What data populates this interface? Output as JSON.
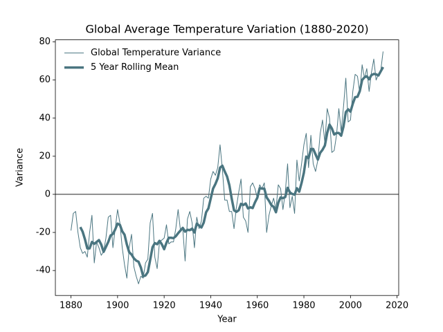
{
  "chart_data": {
    "type": "line",
    "title": "Global Average Temperature Variation (1880-2020)",
    "xlabel": "Year",
    "ylabel": "Variance",
    "x": [
      1880,
      1881,
      1882,
      1883,
      1884,
      1885,
      1886,
      1887,
      1888,
      1889,
      1890,
      1891,
      1892,
      1893,
      1894,
      1895,
      1896,
      1897,
      1898,
      1899,
      1900,
      1901,
      1902,
      1903,
      1904,
      1905,
      1906,
      1907,
      1908,
      1909,
      1910,
      1911,
      1912,
      1913,
      1914,
      1915,
      1916,
      1917,
      1918,
      1919,
      1920,
      1921,
      1922,
      1923,
      1924,
      1925,
      1926,
      1927,
      1928,
      1929,
      1930,
      1931,
      1932,
      1933,
      1934,
      1935,
      1936,
      1937,
      1938,
      1939,
      1940,
      1941,
      1942,
      1943,
      1944,
      1945,
      1946,
      1947,
      1948,
      1949,
      1950,
      1951,
      1952,
      1953,
      1954,
      1955,
      1956,
      1957,
      1958,
      1959,
      1960,
      1961,
      1962,
      1963,
      1964,
      1965,
      1966,
      1967,
      1968,
      1969,
      1970,
      1971,
      1972,
      1973,
      1974,
      1975,
      1976,
      1977,
      1978,
      1979,
      1980,
      1981,
      1982,
      1983,
      1984,
      1985,
      1986,
      1987,
      1988,
      1989,
      1990,
      1991,
      1992,
      1993,
      1994,
      1995,
      1996,
      1997,
      1998,
      1999,
      2000,
      2001,
      2002,
      2003,
      2004,
      2005,
      2006,
      2007,
      2008,
      2009,
      2010,
      2011,
      2012,
      2013,
      2014
    ],
    "series": [
      {
        "name": "Global Temperature Variance",
        "color": "#4a7580",
        "width": 1,
        "values": [
          -19,
          -10,
          -9,
          -20,
          -28,
          -31,
          -30,
          -33,
          -20,
          -11,
          -36,
          -25,
          -28,
          -32,
          -30,
          -23,
          -12,
          -11,
          -28,
          -18,
          -8,
          -15,
          -28,
          -37,
          -44,
          -28,
          -21,
          -38,
          -43,
          -47,
          -43,
          -44,
          -36,
          -34,
          -15,
          -10,
          -33,
          -39,
          -25,
          -24,
          -23,
          -16,
          -26,
          -25,
          -25,
          -18,
          -8,
          -19,
          -18,
          -35,
          -13,
          -9,
          -15,
          -28,
          -12,
          -18,
          -14,
          -2,
          -1,
          -2,
          8,
          12,
          10,
          14,
          26,
          13,
          -3,
          -3,
          -9,
          -9,
          -18,
          -7,
          1,
          8,
          -12,
          -14,
          -20,
          4,
          6,
          3,
          -2,
          5,
          3,
          6,
          -20,
          -11,
          -6,
          -2,
          -8,
          5,
          3,
          -8,
          1,
          16,
          -7,
          -1,
          -10,
          18,
          7,
          16,
          26,
          32,
          14,
          31,
          16,
          12,
          18,
          32,
          39,
          27,
          45,
          40,
          22,
          23,
          31,
          45,
          33,
          46,
          61,
          38,
          39,
          54,
          63,
          62,
          53,
          68,
          61,
          66,
          54,
          64,
          71,
          60,
          63,
          65,
          75
        ]
      },
      {
        "name": "5 Year Rolling Mean",
        "color": "#4a7580",
        "width": 3.5,
        "values": [
          null,
          null,
          null,
          null,
          -17.2,
          -19.6,
          -23.6,
          -28.4,
          -28.4,
          -25,
          -26,
          -25,
          -24,
          -26.4,
          -30.2,
          -27.6,
          -25,
          -21.6,
          -20.8,
          -18.4,
          -15.4,
          -16,
          -19.4,
          -21.2,
          -26.4,
          -30.4,
          -31.6,
          -33.6,
          -34.8,
          -35.4,
          -38.4,
          -43,
          -42.6,
          -40.8,
          -34.4,
          -27.8,
          -25.6,
          -26.2,
          -24.4,
          -26.2,
          -28.8,
          -25.4,
          -22.8,
          -22.8,
          -23,
          -22,
          -20.4,
          -19,
          -17.6,
          -19.6,
          -18.6,
          -18.8,
          -18,
          -20,
          -15.4,
          -16.4,
          -17.4,
          -14.8,
          -9.4,
          -7.4,
          -2.2,
          3,
          5.4,
          8.4,
          14,
          15,
          12,
          9.4,
          4.8,
          -2.2,
          -8.4,
          -9.2,
          -8.4,
          -5,
          -5.6,
          -4.8,
          -7.4,
          -6.8,
          -7.2,
          -4.2,
          -1.8,
          3.2,
          3,
          3,
          -1.6,
          -3.4,
          -5.6,
          -6.6,
          -9.4,
          -4.4,
          -1.6,
          -2,
          -1.4,
          3.4,
          1,
          0.2,
          -0.2,
          3.2,
          1.4,
          6,
          11.4,
          19.8,
          19,
          23.8,
          23.8,
          21,
          18.2,
          21.8,
          23.4,
          25.6,
          32.2,
          36.6,
          34.6,
          31.4,
          32.2,
          32.2,
          30.8,
          35.6,
          43.2,
          44.6,
          43.4,
          47.6,
          51,
          51.2,
          54.2,
          60,
          61.4,
          62,
          60.4,
          62.6,
          63.2,
          63,
          62.4,
          64.6,
          66.8
        ]
      }
    ],
    "xlim": [
      1873.3,
      2020.7
    ],
    "xticks": [
      1880,
      1900,
      1920,
      1940,
      1960,
      1980,
      2000,
      2020
    ],
    "ylim": [
      -53.1,
      81.1
    ],
    "yticks": [
      -40,
      -20,
      0,
      20,
      40,
      60,
      80
    ],
    "hline": 0,
    "legend": "upper left",
    "grid": false
  }
}
